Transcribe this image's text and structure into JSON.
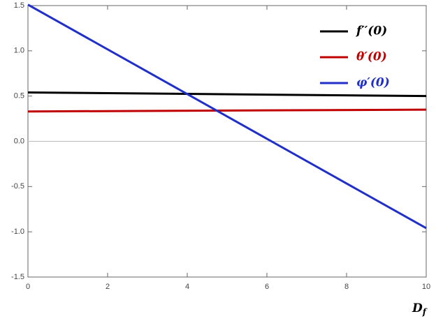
{
  "chart_data": {
    "type": "line",
    "x_label": [
      "D",
      "f"
    ],
    "x": [
      0,
      10
    ],
    "series": [
      {
        "name": "f′′(0)",
        "color": "#000000",
        "values": [
          0.54,
          0.5
        ]
      },
      {
        "name": "θ′(0)",
        "color": "#c00000",
        "values": [
          0.33,
          0.35
        ]
      },
      {
        "name": "φ′(0)",
        "color": "#1f2fc8",
        "values": [
          1.51,
          -0.96
        ]
      }
    ],
    "xlim": [
      0,
      10
    ],
    "xticks": [
      0,
      2,
      4,
      6,
      8,
      10
    ],
    "ylim": [
      -1.5,
      1.5
    ],
    "yticks": [
      -1.5,
      {
        "value": -1,
        "label": "-1.0"
      },
      -0.5,
      {
        "value": 0,
        "label": "0.0"
      },
      0.5,
      {
        "value": 1,
        "label": "1.0"
      },
      1.5
    ],
    "zero_line": true,
    "legend": "top-right"
  }
}
